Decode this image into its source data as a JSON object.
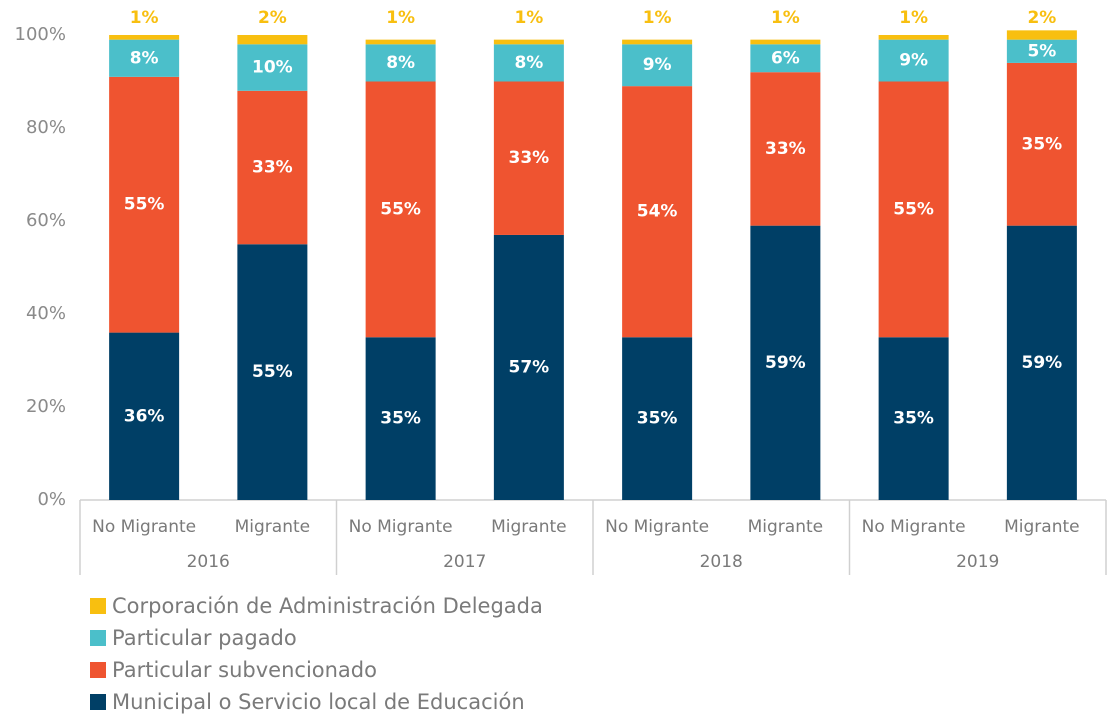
{
  "chart_data": {
    "type": "stacked_bar",
    "categories": [
      "No Migrante",
      "Migrante",
      "No Migrante",
      "Migrante",
      "No Migrante",
      "Migrante",
      "No Migrante",
      "Migrante"
    ],
    "groups": [
      "2016",
      "2017",
      "2018",
      "2019"
    ],
    "ylim": [
      0,
      100
    ],
    "yticks": [
      {
        "value": 0,
        "label": "0%"
      },
      {
        "value": 20,
        "label": "20%"
      },
      {
        "value": 40,
        "label": "40%"
      },
      {
        "value": 60,
        "label": "60%"
      },
      {
        "value": 80,
        "label": "80%"
      },
      {
        "value": 100,
        "label": "100%"
      }
    ],
    "series": [
      {
        "name": "Municipal o Servicio local de Educación",
        "color": "#003f66",
        "values": [
          36,
          55,
          35,
          57,
          35,
          59,
          35,
          59
        ],
        "value_labels": [
          "36%",
          "55%",
          "35%",
          "57%",
          "35%",
          "59%",
          "35%",
          "59%"
        ]
      },
      {
        "name": "Particular subvencionado",
        "color": "#ef5430",
        "values": [
          55,
          33,
          55,
          33,
          54,
          33,
          55,
          35
        ],
        "value_labels": [
          "55%",
          "33%",
          "55%",
          "33%",
          "54%",
          "33%",
          "55%",
          "35%"
        ]
      },
      {
        "name": "Particular pagado",
        "color": "#4bbfca",
        "values": [
          8,
          10,
          8,
          8,
          9,
          6,
          9,
          5
        ],
        "value_labels": [
          "8%",
          "10%",
          "8%",
          "8%",
          "9%",
          "6%",
          "9%",
          "5%"
        ]
      },
      {
        "name": "Corporación de Administración Delegada",
        "color": "#f8bf10",
        "values": [
          1,
          2,
          1,
          1,
          1,
          1,
          1,
          2
        ],
        "value_labels": [
          "1%",
          "2%",
          "1%",
          "1%",
          "1%",
          "1%",
          "1%",
          "2%"
        ]
      }
    ]
  }
}
